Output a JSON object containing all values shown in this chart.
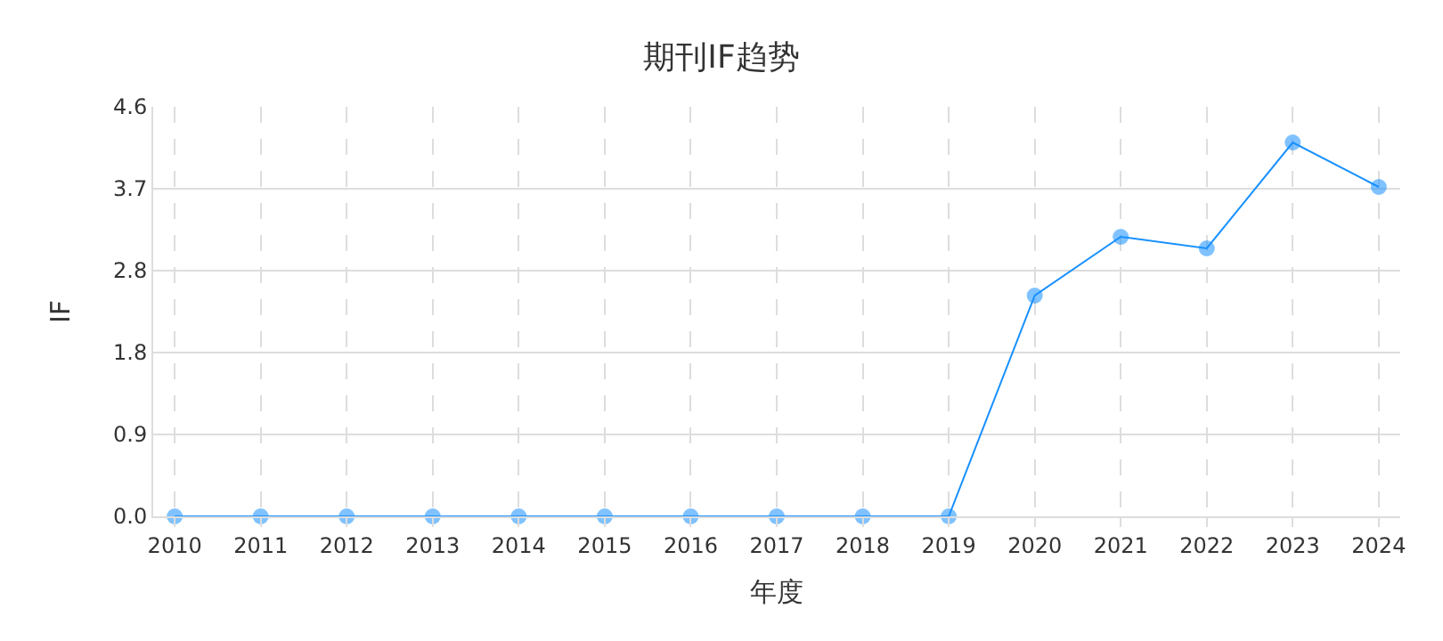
{
  "chart_data": {
    "type": "line",
    "title": "期刊IF趋势",
    "xlabel": "年度",
    "ylabel": "IF",
    "categories": [
      "2010",
      "2011",
      "2012",
      "2013",
      "2014",
      "2015",
      "2016",
      "2017",
      "2018",
      "2019",
      "2020",
      "2021",
      "2022",
      "2023",
      "2024"
    ],
    "series": [
      {
        "color": "#1890ff",
        "values": [
          0,
          0,
          0,
          0,
          0,
          0,
          0,
          0,
          0,
          0,
          2.48,
          3.14,
          3.01,
          4.2,
          3.7
        ]
      }
    ],
    "ylim": [
      0,
      4.6
    ],
    "yticks": [
      {
        "value": 0,
        "label": "0.0"
      },
      {
        "value": 0.92,
        "label": "0.9"
      },
      {
        "value": 1.84,
        "label": "1.8"
      },
      {
        "value": 2.76,
        "label": "2.8"
      },
      {
        "value": 3.68,
        "label": "3.7"
      },
      4.6
    ],
    "grid": true,
    "marker": "circle",
    "line_style": "solid"
  }
}
